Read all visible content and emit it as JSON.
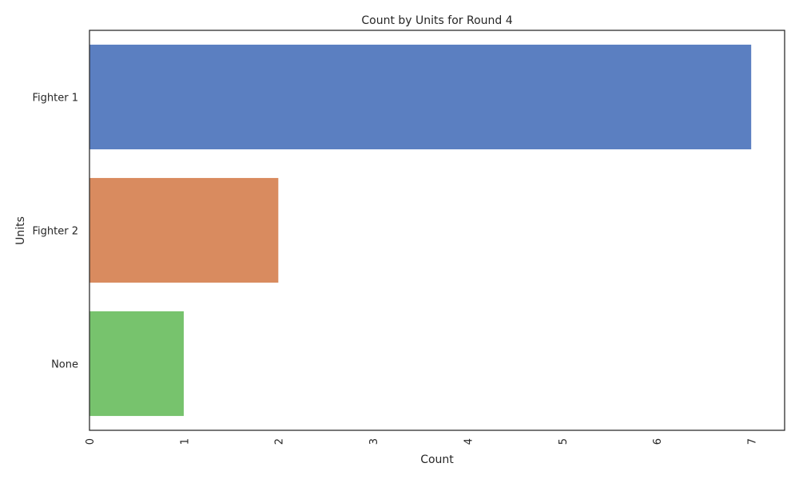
{
  "chart_data": {
    "type": "bar",
    "orientation": "horizontal",
    "title": "Count by Units for Round 4",
    "xlabel": "Count",
    "ylabel": "Units",
    "categories": [
      "Fighter 1",
      "Fighter 2",
      "None"
    ],
    "values": [
      7,
      2,
      1
    ],
    "colors": [
      "#5b7fc1",
      "#d98b5f",
      "#77c36d"
    ],
    "xlim": [
      0,
      7.35
    ],
    "xticks": [
      0,
      1,
      2,
      3,
      4,
      5,
      6,
      7
    ],
    "xtick_labels": [
      "0",
      "1",
      "2",
      "3",
      "4",
      "5",
      "6",
      "7"
    ],
    "grid": false,
    "legend": "none",
    "frame_color": "#262626"
  }
}
